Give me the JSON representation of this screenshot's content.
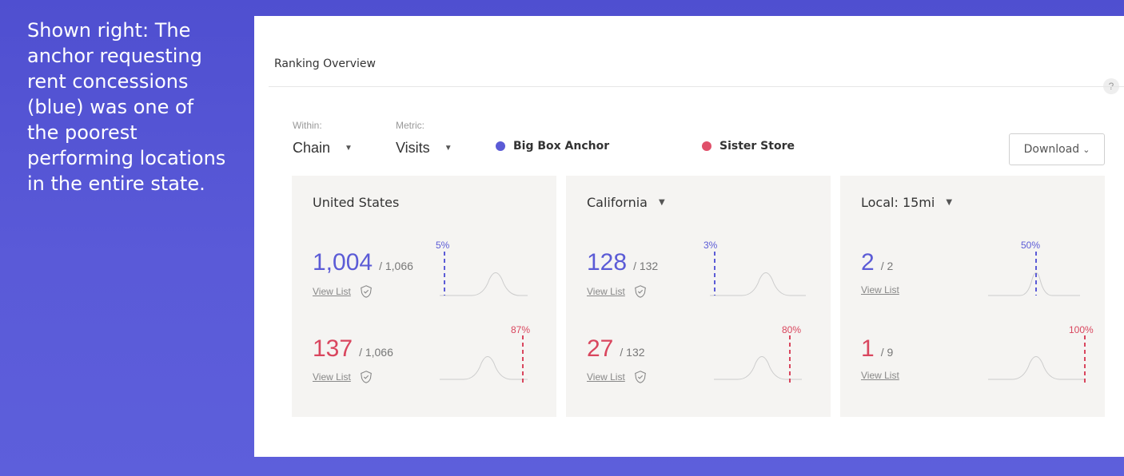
{
  "caption": "Shown right:  The anchor requesting rent concessions (blue) was one of the poorest performing locations in the entire state.",
  "panel": {
    "title": "Ranking Overview",
    "help_label": "?",
    "within_label": "Within:",
    "within_value": "Chain",
    "metric_label": "Metric:",
    "metric_value": "Visits",
    "download_label": "Download"
  },
  "legend": [
    {
      "name": "Big Box Anchor",
      "color": "#5b5bd6"
    },
    {
      "name": "Sister Store",
      "color": "#e0506a"
    }
  ],
  "colors": {
    "blue": "#5b5bd6",
    "red": "#d9465e"
  },
  "cards": [
    {
      "title": "United States",
      "has_dropdown": false,
      "anchor": {
        "rank": "1,004",
        "total": "/ 1,066",
        "percentile": "5%",
        "view_list": "View List"
      },
      "sister": {
        "rank": "137",
        "total": "/ 1,066",
        "percentile": "87%",
        "view_list": "View List"
      }
    },
    {
      "title": "California",
      "has_dropdown": true,
      "anchor": {
        "rank": "128",
        "total": "/ 132",
        "percentile": "3%",
        "view_list": "View List"
      },
      "sister": {
        "rank": "27",
        "total": "/ 132",
        "percentile": "80%",
        "view_list": "View List"
      }
    },
    {
      "title": "Local: 15mi",
      "has_dropdown": true,
      "anchor": {
        "rank": "2",
        "total": "/ 2",
        "percentile": "50%",
        "view_list": "View List"
      },
      "sister": {
        "rank": "1",
        "total": "/ 9",
        "percentile": "100%",
        "view_list": "View List"
      }
    }
  ]
}
